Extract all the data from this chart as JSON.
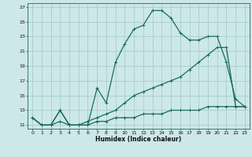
{
  "xlabel": "Humidex (Indice chaleur)",
  "bg_color": "#cce8e8",
  "grid_color": "#aacccc",
  "line_color": "#1a6b5a",
  "xlim": [
    -0.5,
    23.5
  ],
  "ylim": [
    10.5,
    27.5
  ],
  "xticks": [
    0,
    1,
    2,
    3,
    4,
    5,
    6,
    7,
    8,
    9,
    10,
    11,
    12,
    13,
    14,
    15,
    16,
    17,
    18,
    19,
    20,
    21,
    22,
    23
  ],
  "yticks": [
    11,
    13,
    15,
    17,
    19,
    21,
    23,
    25,
    27
  ],
  "curve1_x": [
    0,
    1,
    2,
    3,
    4,
    5,
    6,
    7,
    8,
    9,
    10,
    11,
    12,
    13,
    14,
    15,
    16,
    17,
    18,
    19,
    20,
    21,
    22,
    23
  ],
  "curve1_y": [
    12.0,
    11.0,
    11.0,
    13.0,
    11.0,
    11.0,
    11.0,
    16.0,
    14.0,
    19.5,
    22.0,
    24.0,
    24.5,
    26.5,
    26.5,
    25.5,
    23.5,
    22.5,
    22.5,
    23.0,
    23.0,
    19.5,
    14.5,
    13.5
  ],
  "curve2_x": [
    0,
    1,
    2,
    3,
    4,
    5,
    6,
    7,
    8,
    9,
    10,
    11,
    12,
    13,
    14,
    15,
    16,
    17,
    18,
    19,
    20,
    21,
    22,
    23
  ],
  "curve2_y": [
    12.0,
    11.0,
    11.0,
    13.0,
    11.0,
    11.0,
    11.5,
    12.0,
    12.5,
    13.0,
    14.0,
    15.0,
    15.5,
    16.0,
    16.5,
    17.0,
    17.5,
    18.5,
    19.5,
    20.5,
    21.5,
    21.5,
    13.5,
    13.5
  ],
  "curve3_x": [
    0,
    1,
    2,
    3,
    4,
    5,
    6,
    7,
    8,
    9,
    10,
    11,
    12,
    13,
    14,
    15,
    16,
    17,
    18,
    19,
    20,
    21,
    22,
    23
  ],
  "curve3_y": [
    12.0,
    11.0,
    11.0,
    11.5,
    11.0,
    11.0,
    11.0,
    11.5,
    11.5,
    12.0,
    12.0,
    12.0,
    12.5,
    12.5,
    12.5,
    13.0,
    13.0,
    13.0,
    13.0,
    13.5,
    13.5,
    13.5,
    13.5,
    13.5
  ]
}
